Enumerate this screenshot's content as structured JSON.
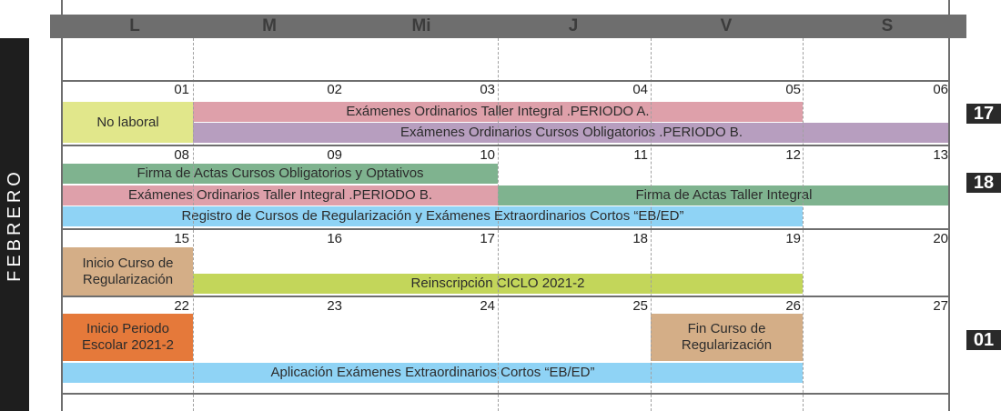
{
  "month": "FEBRERO",
  "day_headers": [
    "L",
    "M",
    "Mi",
    "J",
    "V",
    "S"
  ],
  "weeks": [
    {
      "days": [
        "01",
        "02",
        "03",
        "04",
        "05",
        "06"
      ],
      "badge": "17"
    },
    {
      "days": [
        "08",
        "09",
        "10",
        "11",
        "12",
        "13"
      ],
      "badge": "18"
    },
    {
      "days": [
        "15",
        "16",
        "17",
        "18",
        "19",
        "20"
      ],
      "badge": ""
    },
    {
      "days": [
        "22",
        "23",
        "24",
        "25",
        "26",
        "27"
      ],
      "badge": "01"
    }
  ],
  "events": [
    {
      "label": "No laboral",
      "color": "#e1e78b"
    },
    {
      "label": "Exámenes Ordinarios Taller Integral .PERIODO A.",
      "color": "#dea0aa"
    },
    {
      "label": "Exámenes Ordinarios Cursos Obligatorios .PERIODO B.",
      "color": "#b79ebf"
    },
    {
      "label": "Firma de Actas Cursos Obligatorios y Optativos",
      "color": "#7fb38f"
    },
    {
      "label": "Exámenes Ordinarios Taller Integral .PERIODO B.",
      "color": "#dea0aa"
    },
    {
      "label": "Firma de Actas Taller Integral",
      "color": "#7fb38f"
    },
    {
      "label": "Registro de Cursos de Regularización y Exámenes Extraordinarios Cortos “EB/ED”",
      "color": "#8fd3f5"
    },
    {
      "label": "Inicio Curso de Regularización",
      "color": "#d4ae87"
    },
    {
      "label": "Reinscripción CICLO 2021-2",
      "color": "#c3d65a"
    },
    {
      "label": "Inicio Periodo Escolar 2021-2",
      "color": "#e5793a"
    },
    {
      "label": "Fin Curso de Regularización",
      "color": "#d4ae87"
    },
    {
      "label": "Aplicación Exámenes Extraordinarios Cortos “EB/ED”",
      "color": "#8fd3f5"
    }
  ]
}
